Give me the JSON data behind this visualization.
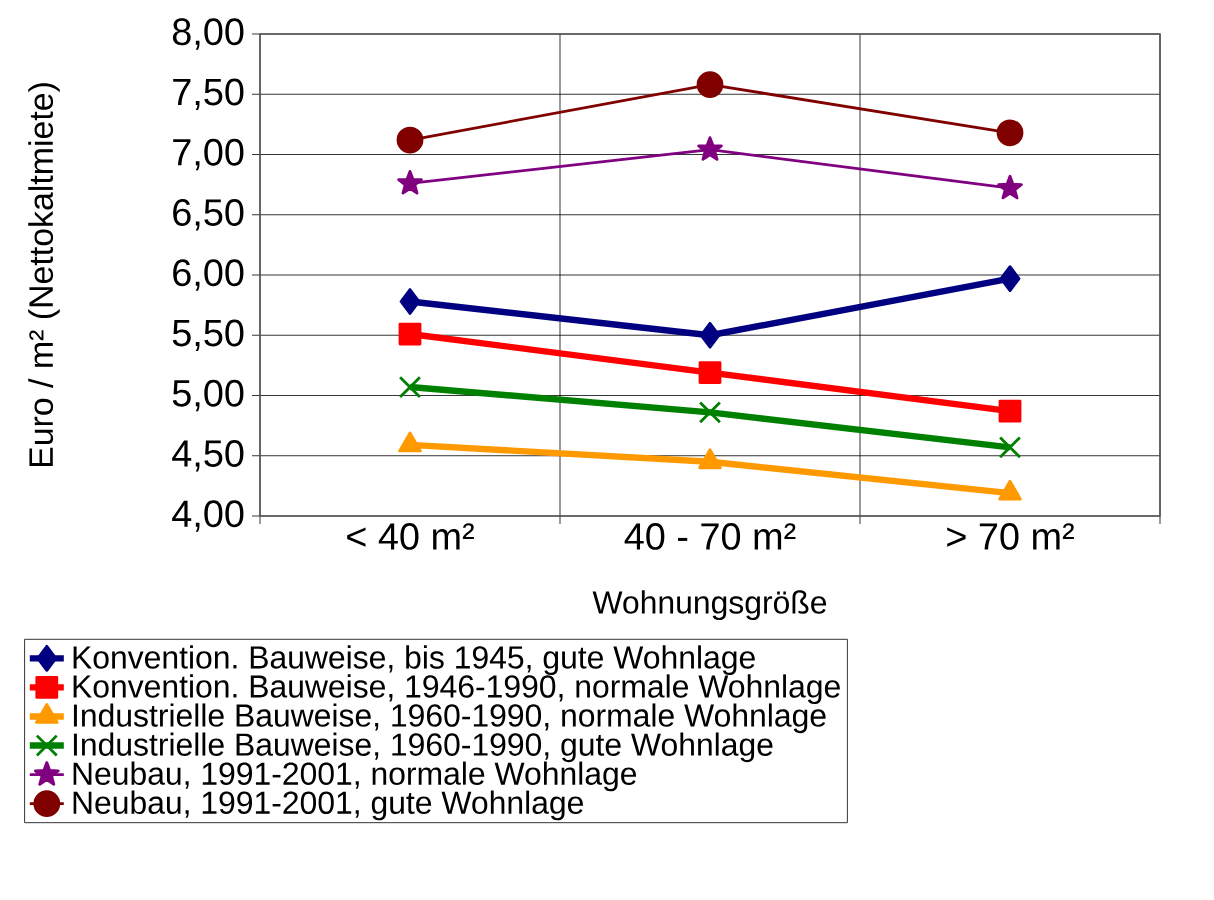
{
  "chart_data": {
    "type": "line",
    "xlabel": "Wohnungsgröße",
    "ylabel": "Euro / m² (Nettokaltmiete)",
    "categories": [
      "< 40 m²",
      "40 - 70 m²",
      "> 70 m²"
    ],
    "ylim": [
      4,
      8
    ],
    "yticks": [
      {
        "value": 4,
        "label": "4,00"
      },
      {
        "value": 4.5,
        "label": "4,50"
      },
      {
        "value": 5,
        "label": "5,00"
      },
      {
        "value": 5.5,
        "label": "5,50"
      },
      {
        "value": 6,
        "label": "6,00"
      },
      {
        "value": 6.5,
        "label": "6,50"
      },
      {
        "value": 7,
        "label": "7,00"
      },
      {
        "value": 7.5,
        "label": "7,50"
      },
      {
        "value": 8,
        "label": "8,00"
      }
    ],
    "grid": true,
    "legend": "bottom",
    "series": [
      {
        "name": "Konvention. Bauweise, bis 1945, gute Wohnlage",
        "color": "#000080",
        "marker": "diamond",
        "values": [
          5.78,
          5.5,
          5.97
        ]
      },
      {
        "name": "Konvention. Bauweise, 1946-1990, normale Wohnlage",
        "color": "#ff0000",
        "marker": "square",
        "values": [
          5.51,
          5.19,
          4.87
        ]
      },
      {
        "name": "Industrielle Bauweise, 1960-1990, normale Wohnlage",
        "color": "#ff9900",
        "marker": "triangle",
        "values": [
          4.59,
          4.45,
          4.19
        ]
      },
      {
        "name": "Industrielle Bauweise, 1960-1990, gute Wohnlage",
        "color": "#008000",
        "marker": "cross",
        "values": [
          5.07,
          4.86,
          4.57
        ]
      },
      {
        "name": "Neubau, 1991-2001, normale Wohnlage",
        "color": "#800080",
        "marker": "star",
        "values": [
          6.76,
          7.04,
          6.72
        ]
      },
      {
        "name": "Neubau, 1991-2001, gute Wohnlage",
        "color": "#800000",
        "marker": "circle",
        "values": [
          7.12,
          7.58,
          7.18
        ]
      }
    ]
  }
}
